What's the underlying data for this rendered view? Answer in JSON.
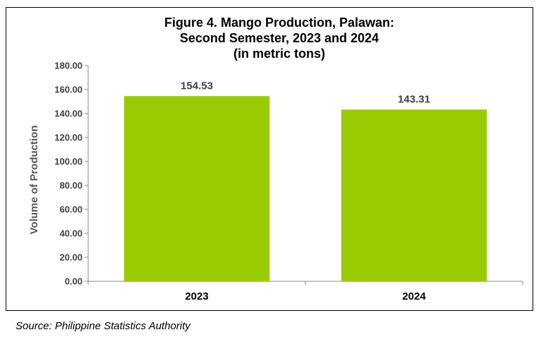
{
  "chart_data": {
    "type": "bar",
    "title_lines": [
      "Figure 4. Mango Production, Palawan:",
      "Second Semester, 2023 and 2024",
      "(in metric tons)"
    ],
    "categories": [
      "2023",
      "2024"
    ],
    "values": [
      154.53,
      143.31
    ],
    "data_labels": [
      "154.53",
      "143.31"
    ],
    "ylabel": "Volume of Production",
    "xlabel": "",
    "ylim": [
      0,
      180
    ],
    "yticks": [
      "0.00",
      "20.00",
      "40.00",
      "60.00",
      "80.00",
      "100.00",
      "120.00",
      "140.00",
      "160.00",
      "180.00"
    ],
    "grid": false,
    "legend": "none",
    "bar_color": "#99CC00"
  },
  "source": "Source: Philippine Statistics Authority"
}
